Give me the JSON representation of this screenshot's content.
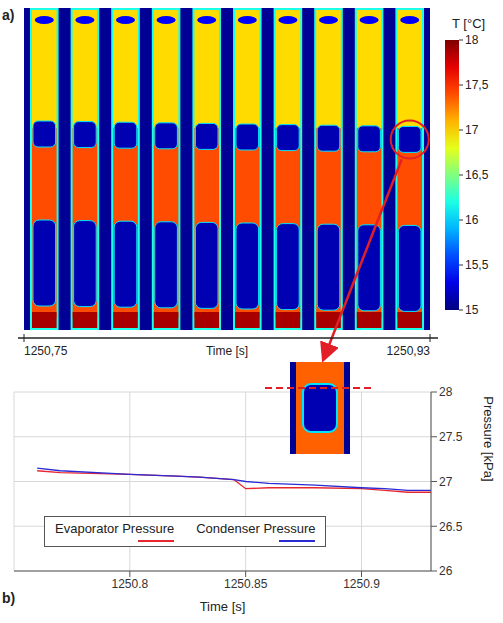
{
  "chart_data": [
    {
      "type": "thermal_image",
      "panel": "a)",
      "frames": 10,
      "colorbar": {
        "title": "T [°C]",
        "range": [
          15,
          18
        ],
        "ticks": [
          15,
          {
            "value": 15.5,
            "label": "15,5"
          },
          16,
          {
            "value": 16.5,
            "label": "16,5"
          },
          17,
          {
            "value": 17.5,
            "label": "17,5"
          },
          18
        ]
      },
      "time_axis": {
        "title": "Time [s]",
        "ticks": [
          {
            "value": 1250.75,
            "label": "1250,75"
          },
          {
            "value": 1250.93,
            "label": "1250,93"
          }
        ]
      }
    },
    {
      "type": "line",
      "panel": "b)",
      "xlabel": "Time [s]",
      "ylabel": "Pressure [kPa]",
      "x": [
        1250.76,
        1250.77,
        1250.8,
        1250.82,
        1250.83,
        1250.845,
        1250.85,
        1250.86,
        1250.88,
        1250.9,
        1250.91,
        1250.92,
        1250.93
      ],
      "series": [
        {
          "name": "Evaporator Pressure",
          "color": "#e8262d",
          "values": [
            27.12,
            27.1,
            27.08,
            27.06,
            27.05,
            27.02,
            26.92,
            26.93,
            26.93,
            26.92,
            26.9,
            26.88,
            26.88
          ]
        },
        {
          "name": "Condenser Pressure",
          "color": "#2b2bd6",
          "values": [
            27.15,
            27.12,
            27.08,
            27.06,
            27.05,
            27.02,
            27.0,
            26.98,
            26.96,
            26.93,
            26.92,
            26.9,
            26.9
          ]
        }
      ],
      "xlim": [
        1250.75,
        1250.93
      ],
      "xticks": [
        1250.8,
        1250.85,
        1250.9
      ],
      "ylim": [
        26,
        28
      ],
      "yticks": [
        26,
        26.5,
        27,
        27.5,
        28
      ],
      "grid": true,
      "legend": "lower center"
    }
  ]
}
